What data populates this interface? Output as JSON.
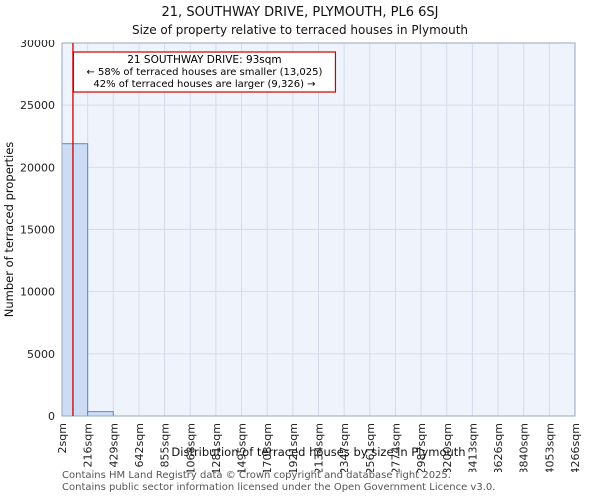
{
  "chart_data": {
    "type": "bar",
    "title": "21, SOUTHWAY DRIVE, PLYMOUTH, PL6 6SJ",
    "subtitle": "Size of property relative to terraced houses in Plymouth",
    "xlabel": "Distribution of terraced houses by size in Plymouth",
    "ylabel": "Number of terraced properties",
    "ylim": [
      0,
      30000
    ],
    "yticks": [
      0,
      5000,
      10000,
      15000,
      20000,
      25000,
      30000
    ],
    "grid": true,
    "legend": "none",
    "categories": [
      "2sqm",
      "216sqm",
      "429sqm",
      "642sqm",
      "855sqm",
      "1068sqm",
      "1281sqm",
      "1495sqm",
      "1708sqm",
      "1921sqm",
      "2134sqm",
      "2347sqm",
      "2561sqm",
      "2774sqm",
      "2987sqm",
      "3200sqm",
      "3413sqm",
      "3626sqm",
      "3840sqm",
      "4053sqm",
      "4266sqm"
    ],
    "values": [
      21900,
      350,
      0,
      0,
      0,
      0,
      0,
      0,
      0,
      0,
      0,
      0,
      0,
      0,
      0,
      0,
      0,
      0,
      0,
      0
    ],
    "x_range_sqm": [
      2,
      4266
    ],
    "marker_value_sqm": 93,
    "annotation": {
      "line1": "21 SOUTHWAY DRIVE: 93sqm",
      "line2": "← 58% of terraced houses are smaller (13,025)",
      "line3": "42% of terraced houses are larger (9,326) →"
    },
    "colors": {
      "bar_fill": "#ccdcf4",
      "bar_border": "#5588cc",
      "marker_line": "#cc0000",
      "annotation_border": "#cc0000",
      "plot_bg": "#eff3fb",
      "grid_line": "#d4dcec",
      "spine": "#9aa7bd",
      "tick_text": "#222222",
      "footer_text": "#555555"
    }
  },
  "footer": {
    "line1": "Contains HM Land Registry data © Crown copyright and database right 2025.",
    "line2": "Contains public sector information licensed under the Open Government Licence v3.0."
  }
}
